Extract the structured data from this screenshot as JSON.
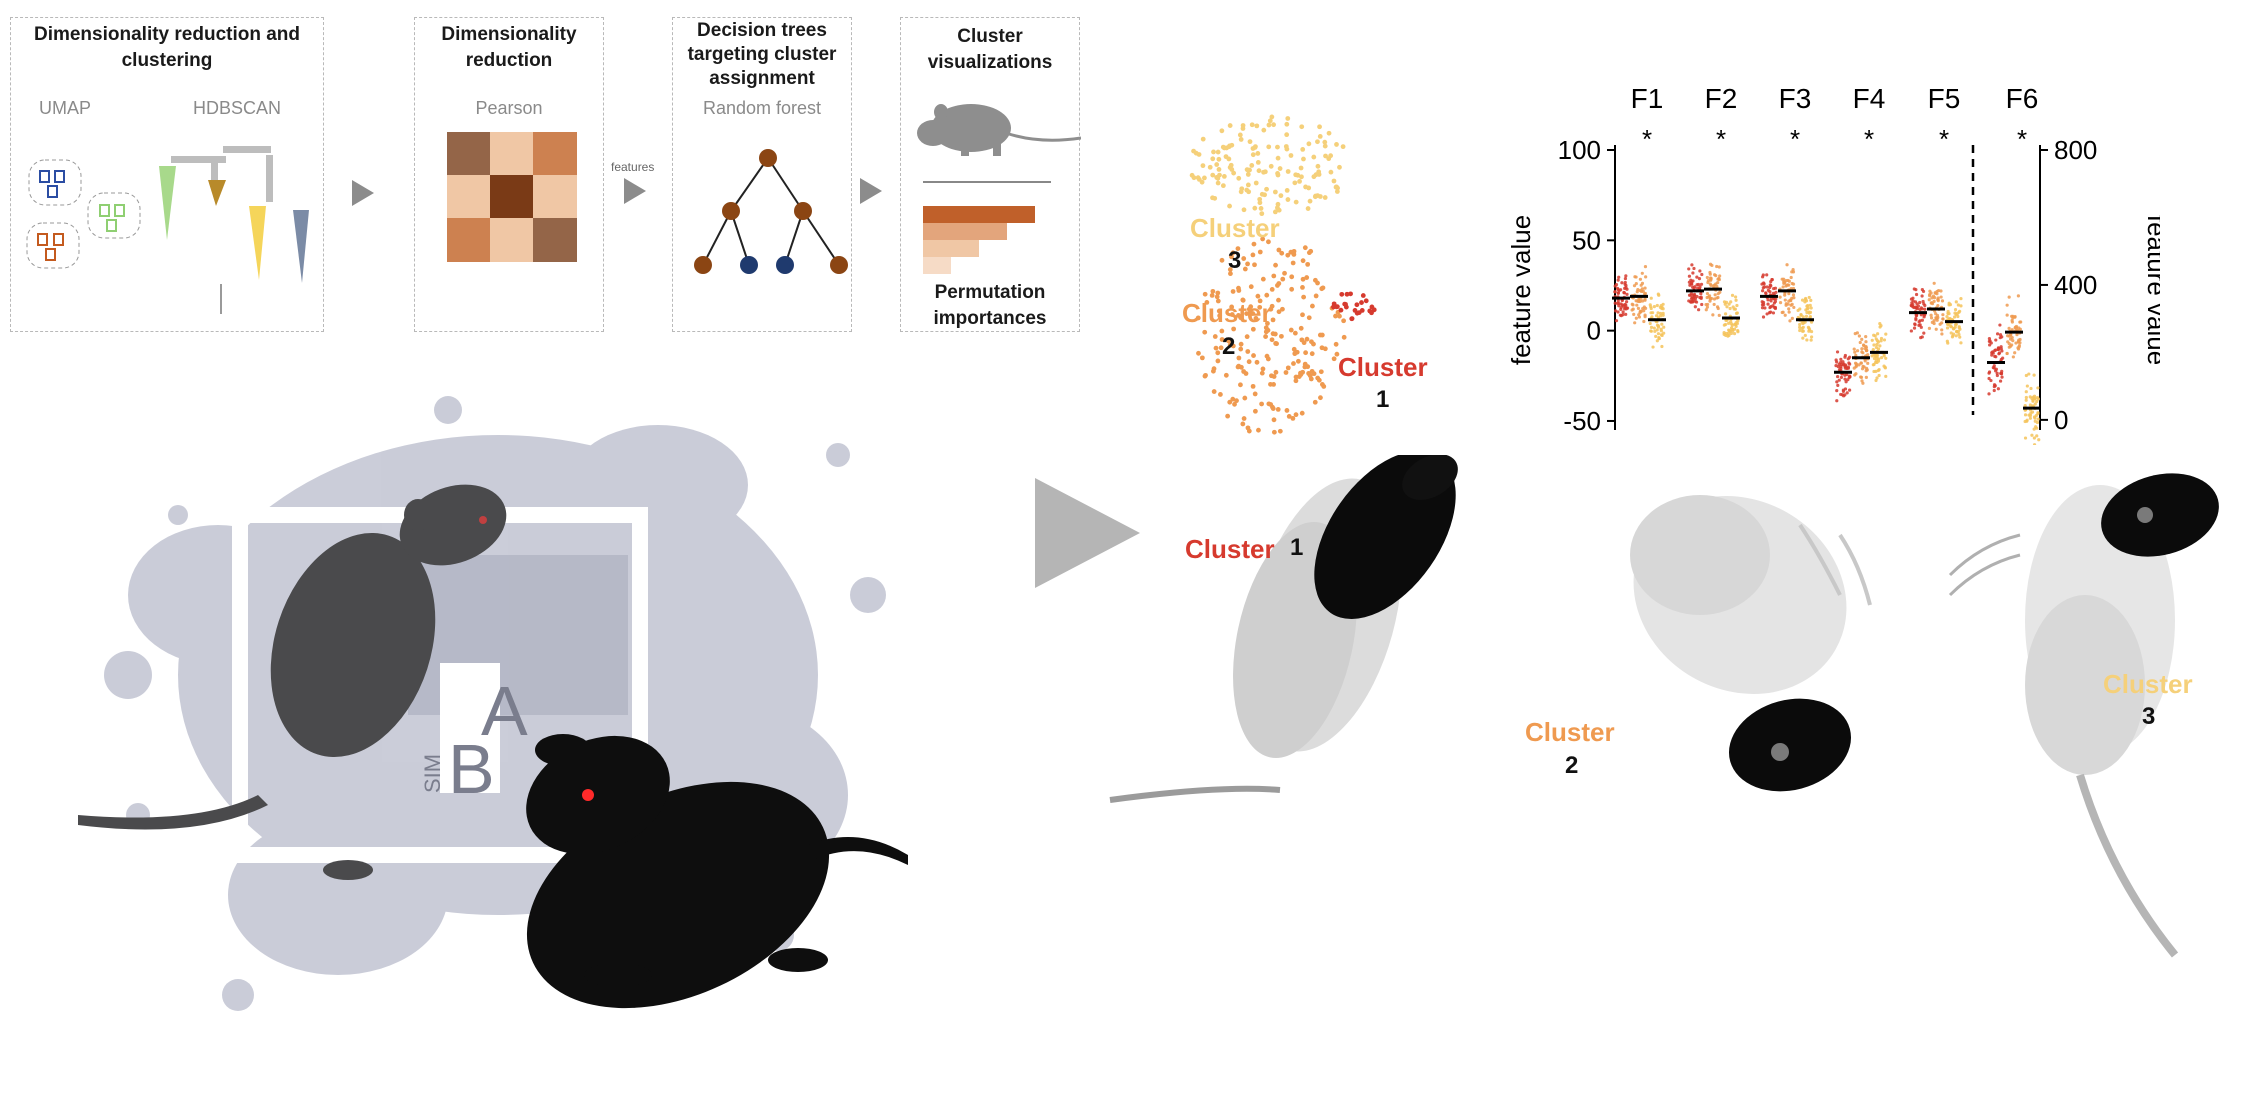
{
  "pipeline": {
    "box1": {
      "title_line1": "Dimensionality reduction and",
      "title_line2": "clustering",
      "label_a": "UMAP",
      "label_b": "HDBSCAN"
    },
    "box2": {
      "title_line1": "Dimensionality",
      "title_line2": "reduction",
      "label": "Pearson"
    },
    "features_label": "features",
    "box3": {
      "title_line1": "Decision trees",
      "title_line2": "targeting cluster",
      "title_line3": "assignment",
      "label": "Random forest"
    },
    "box4": {
      "title_line1": "Cluster",
      "title_line2": "visualizations",
      "bottom_line1": "Permutation",
      "bottom_line2": "importances"
    }
  },
  "logo": {
    "text": "SIMBA",
    "letters": [
      "A",
      "B",
      "SIM"
    ]
  },
  "umap": {
    "clusters": [
      {
        "name": "Cluster",
        "number": "3",
        "color": "#f5d07a"
      },
      {
        "name": "Cluster",
        "number": "2",
        "color": "#ef9a50"
      },
      {
        "name": "Cluster",
        "number": "1",
        "color": "#d63a2e"
      }
    ]
  },
  "chart_data": {
    "type": "scatter",
    "categories": [
      "F1",
      "F2",
      "F3",
      "F4",
      "F5",
      "F6"
    ],
    "significance": [
      "*",
      "*",
      "*",
      "*",
      "*",
      "*"
    ],
    "ylabel": "feature value",
    "ylabel_right": "feature value",
    "ylim": [
      -55,
      100
    ],
    "yticks": [
      100,
      50,
      0,
      -50
    ],
    "ylim_right": [
      -30,
      800
    ],
    "yticks_right": [
      800,
      400,
      0
    ],
    "right_axis_applies_to": [
      "F6"
    ],
    "series": [
      {
        "color": "#d63a2e",
        "medians": [
          18,
          22,
          19,
          -23,
          10,
          170
        ]
      },
      {
        "color": "#ef9a50",
        "medians": [
          19,
          23,
          22,
          -15,
          12,
          260
        ]
      },
      {
        "color": "#f5c35a",
        "medians": [
          6,
          7,
          6,
          -12,
          5,
          35
        ]
      }
    ]
  },
  "bottom_clusters": [
    {
      "name": "Cluster",
      "number": "1",
      "color": "#d63a2e"
    },
    {
      "name": "Cluster",
      "number": "2",
      "color": "#ef9a50"
    },
    {
      "name": "Cluster",
      "number": "3",
      "color": "#f5d07a"
    }
  ]
}
